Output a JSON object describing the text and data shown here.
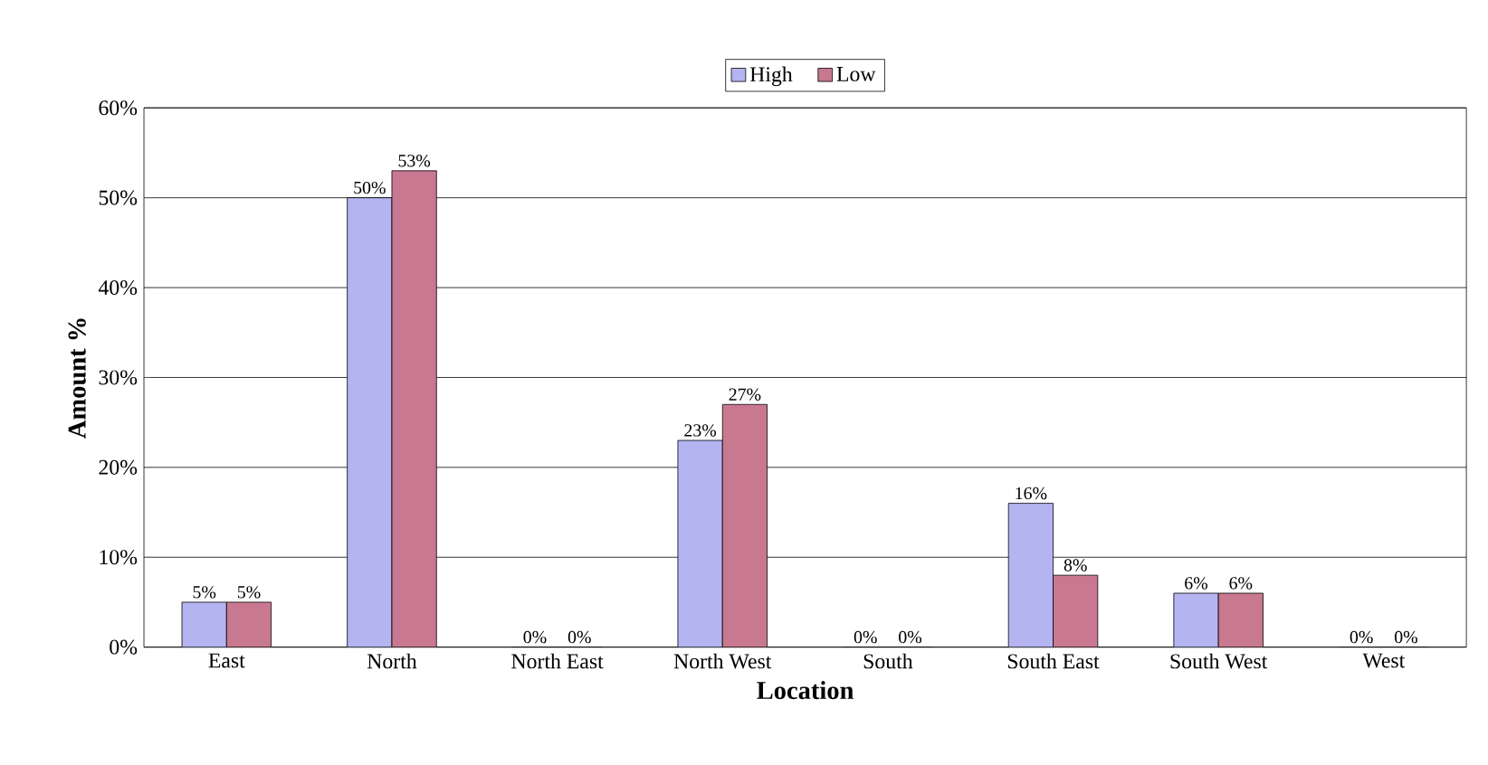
{
  "chart_data": {
    "type": "bar",
    "xlabel": "Location",
    "ylabel": "Amount %",
    "categories": [
      "East",
      "North",
      "North East",
      "North West",
      "South",
      "South East",
      "South West",
      "West"
    ],
    "series": [
      {
        "name": "High",
        "color": "#b4b4f0",
        "values": [
          5,
          50,
          0,
          23,
          0,
          16,
          6,
          0
        ],
        "value_labels": [
          "5%",
          "50%",
          "0%",
          "23%",
          "0%",
          "16%",
          "6%",
          "0%"
        ]
      },
      {
        "name": "Low",
        "color": "#c87890",
        "values": [
          5,
          53,
          0,
          27,
          0,
          8,
          6,
          0
        ],
        "value_labels": [
          "5%",
          "53%",
          "0%",
          "27%",
          "0%",
          "8%",
          "6%",
          "0%"
        ]
      }
    ],
    "ylim": [
      0,
      60
    ],
    "yticks": [
      {
        "value": 0,
        "label": "0%"
      },
      {
        "value": 10,
        "label": "10%"
      },
      {
        "value": 20,
        "label": "20%"
      },
      {
        "value": 30,
        "label": "30%"
      },
      {
        "value": 40,
        "label": "40%"
      },
      {
        "value": 50,
        "label": "50%"
      },
      {
        "value": 60,
        "label": "60%"
      }
    ],
    "grid": "y",
    "legend": "top"
  }
}
